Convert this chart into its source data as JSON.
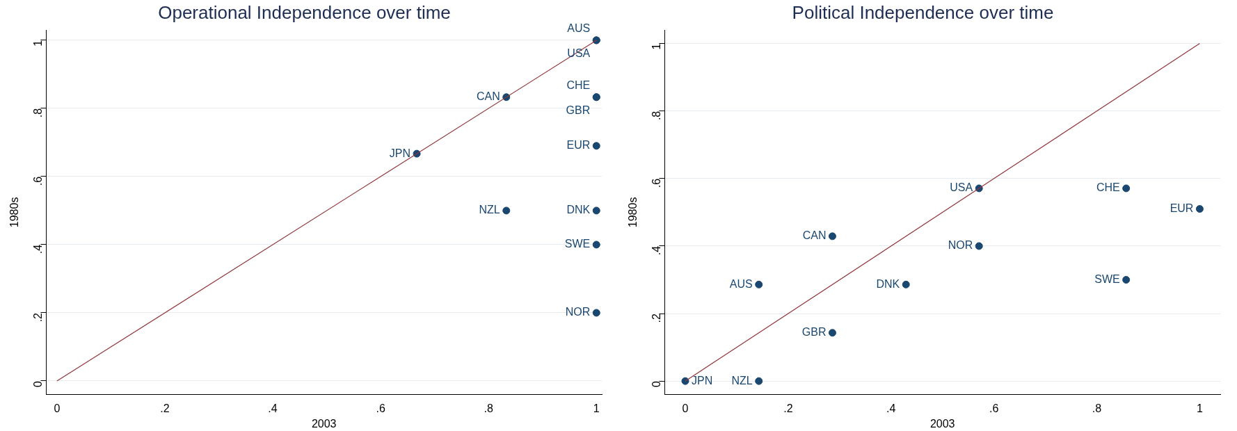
{
  "chart_data": [
    {
      "type": "scatter",
      "title": "Operational Independence over time",
      "xlabel": "2003",
      "ylabel": "1980s",
      "xlim": [
        -0.02,
        1.01
      ],
      "ylim": [
        -0.04,
        1.03
      ],
      "xticks": [
        {
          "value": 0,
          "label": "0"
        },
        {
          "value": 0.2,
          "label": ".2"
        },
        {
          "value": 0.4,
          "label": ".4"
        },
        {
          "value": 0.6,
          "label": ".6"
        },
        {
          "value": 0.8,
          "label": ".8"
        },
        {
          "value": 1,
          "label": "1"
        }
      ],
      "yticks": [
        {
          "value": 0,
          "label": "0"
        },
        {
          "value": 0.2,
          "label": ".2"
        },
        {
          "value": 0.4,
          "label": ".4"
        },
        {
          "value": 0.6,
          "label": ".6"
        },
        {
          "value": 0.8,
          "label": ".8"
        },
        {
          "value": 1,
          "label": "1"
        }
      ],
      "grid": "y",
      "series": [
        {
          "type": "line",
          "color": "#90353b",
          "x": [
            0,
            1
          ],
          "values": [
            0,
            1
          ]
        },
        {
          "marker": "circle",
          "color": "#1a476f",
          "x": [
            1,
            1,
            0.833,
            1,
            1,
            0.667,
            1,
            0.833,
            1,
            1,
            1
          ],
          "values": [
            1,
            1,
            0.833,
            0.833,
            0.833,
            0.667,
            0.69,
            0.5,
            0.5,
            0.4,
            0.2
          ]
        }
      ],
      "annotations": [
        {
          "text": "AUS",
          "x": 1,
          "y": 1
        },
        {
          "text": "USA",
          "x": 1,
          "y": 1
        },
        {
          "text": "CAN",
          "x": 0.833,
          "y": 0.833
        },
        {
          "text": "CHE",
          "x": 1,
          "y": 0.833
        },
        {
          "text": "GBR",
          "x": 1,
          "y": 0.833
        },
        {
          "text": "JPN",
          "x": 0.667,
          "y": 0.667
        },
        {
          "text": "EUR",
          "x": 1,
          "y": 0.69
        },
        {
          "text": "NZL",
          "x": 0.833,
          "y": 0.5
        },
        {
          "text": "DNK",
          "x": 1,
          "y": 0.5
        },
        {
          "text": "SWE",
          "x": 1,
          "y": 0.4
        },
        {
          "text": "NOR",
          "x": 1,
          "y": 0.2
        }
      ]
    },
    {
      "type": "scatter",
      "title": "Political Independence over time",
      "xlabel": "2003",
      "ylabel": "1980s",
      "xlim": [
        -0.04,
        1.04
      ],
      "ylim": [
        -0.04,
        1.04
      ],
      "xticks": [
        {
          "value": 0,
          "label": "0"
        },
        {
          "value": 0.2,
          "label": ".2"
        },
        {
          "value": 0.4,
          "label": ".4"
        },
        {
          "value": 0.6,
          "label": ".6"
        },
        {
          "value": 0.8,
          "label": ".8"
        },
        {
          "value": 1,
          "label": "1"
        }
      ],
      "yticks": [
        {
          "value": 0,
          "label": "0"
        },
        {
          "value": 0.2,
          "label": ".2"
        },
        {
          "value": 0.4,
          "label": ".4"
        },
        {
          "value": 0.6,
          "label": ".6"
        },
        {
          "value": 0.8,
          "label": ".8"
        },
        {
          "value": 1,
          "label": "1"
        }
      ],
      "grid": "y",
      "series": [
        {
          "type": "line",
          "color": "#90353b",
          "x": [
            0,
            1
          ],
          "values": [
            0,
            1
          ]
        },
        {
          "marker": "circle",
          "color": "#1a476f",
          "x": [
            0,
            0.143,
            0.143,
            0.286,
            0.286,
            0.429,
            0.571,
            0.571,
            0.857,
            0.857,
            1
          ],
          "values": [
            0,
            0,
            0.286,
            0.143,
            0.429,
            0.286,
            0.571,
            0.4,
            0.571,
            0.3,
            0.51
          ]
        }
      ],
      "annotations": [
        {
          "text": "JPN",
          "x": 0,
          "y": 0
        },
        {
          "text": "NZL",
          "x": 0.143,
          "y": 0
        },
        {
          "text": "AUS",
          "x": 0.143,
          "y": 0.286
        },
        {
          "text": "GBR",
          "x": 0.286,
          "y": 0.143
        },
        {
          "text": "CAN",
          "x": 0.286,
          "y": 0.429
        },
        {
          "text": "DNK",
          "x": 0.429,
          "y": 0.286
        },
        {
          "text": "USA",
          "x": 0.571,
          "y": 0.571
        },
        {
          "text": "NOR",
          "x": 0.571,
          "y": 0.4
        },
        {
          "text": "CHE",
          "x": 0.857,
          "y": 0.571
        },
        {
          "text": "SWE",
          "x": 0.857,
          "y": 0.3
        },
        {
          "text": "EUR",
          "x": 1,
          "y": 0.51
        }
      ]
    }
  ]
}
